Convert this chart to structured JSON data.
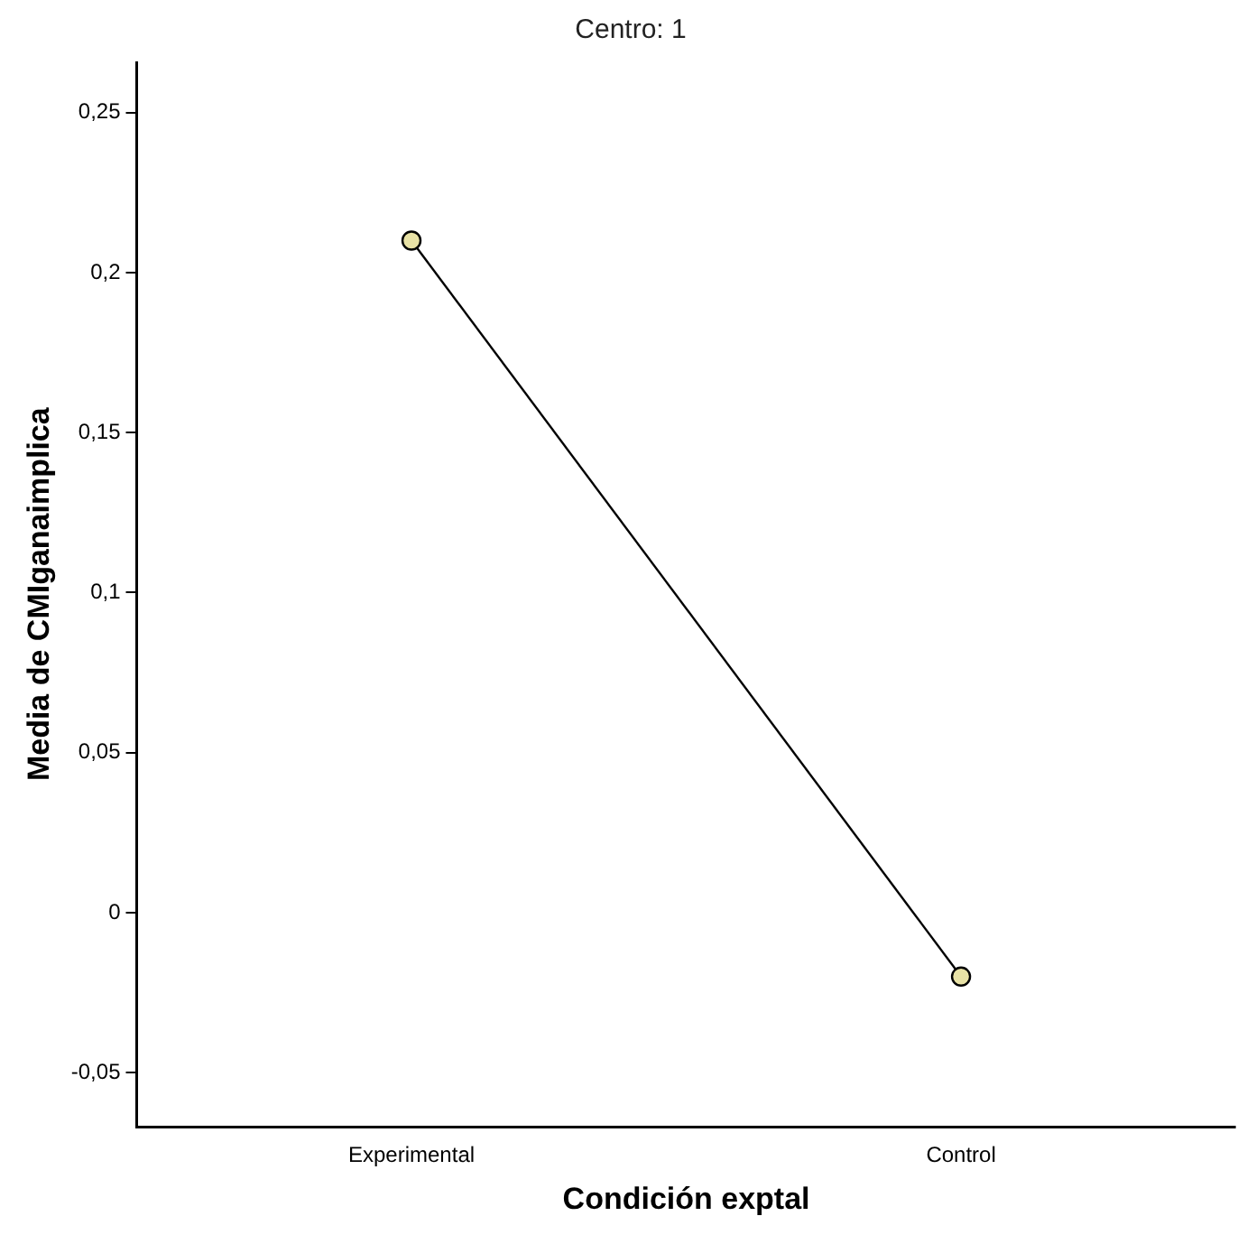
{
  "chart_data": {
    "type": "line",
    "title": "Centro: 1",
    "xlabel": "Condición exptal",
    "ylabel": "Media de CMIganaimplica",
    "categories": [
      "Experimental",
      "Control"
    ],
    "series": [
      {
        "color": "#000000",
        "values": [
          0.21,
          -0.02
        ]
      }
    ],
    "ylim": [
      -0.067,
      0.266
    ],
    "yticks": [
      {
        "value": -0.05,
        "label": "-0,05"
      },
      {
        "value": 0,
        "label": "0"
      },
      {
        "value": 0.05,
        "label": "0,05"
      },
      {
        "value": 0.1,
        "label": "0,1"
      },
      {
        "value": 0.15,
        "label": "0,15"
      },
      {
        "value": 0.2,
        "label": "0,2"
      },
      {
        "value": 0.25,
        "label": "0,25"
      }
    ],
    "grid": false,
    "legend": false,
    "marker": "circle",
    "line_style": "solid"
  }
}
